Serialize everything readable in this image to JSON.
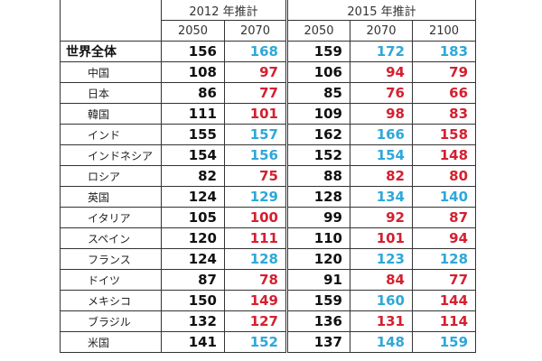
{
  "table": {
    "group_headers": [
      "2012 年推計",
      "2015 年推計"
    ],
    "sub_headers": [
      "2050",
      "2070",
      "2050",
      "2070",
      "2100"
    ],
    "colors": {
      "increase": "#2ea8d8",
      "decrease": "#d42030",
      "base": "#111111"
    },
    "rows": [
      {
        "label": "世界全体",
        "v": [
          "156",
          "168",
          "159",
          "172",
          "183"
        ],
        "t": [
          "base",
          "up",
          "base",
          "up",
          "up"
        ]
      },
      {
        "label": "中国",
        "v": [
          "108",
          "97",
          "106",
          "94",
          "79"
        ],
        "t": [
          "base",
          "down",
          "base",
          "down",
          "down"
        ]
      },
      {
        "label": "日本",
        "v": [
          "86",
          "77",
          "85",
          "76",
          "66"
        ],
        "t": [
          "base",
          "down",
          "base",
          "down",
          "down"
        ]
      },
      {
        "label": "韓国",
        "v": [
          "111",
          "101",
          "109",
          "98",
          "83"
        ],
        "t": [
          "base",
          "down",
          "base",
          "down",
          "down"
        ]
      },
      {
        "label": "インド",
        "v": [
          "155",
          "157",
          "162",
          "166",
          "158"
        ],
        "t": [
          "base",
          "up",
          "base",
          "up",
          "down"
        ]
      },
      {
        "label": "インドネシア",
        "v": [
          "154",
          "156",
          "152",
          "154",
          "148"
        ],
        "t": [
          "base",
          "up",
          "base",
          "up",
          "down"
        ]
      },
      {
        "label": "ロシア",
        "v": [
          "82",
          "75",
          "88",
          "82",
          "80"
        ],
        "t": [
          "base",
          "down",
          "base",
          "down",
          "down"
        ]
      },
      {
        "label": "英国",
        "v": [
          "124",
          "129",
          "128",
          "134",
          "140"
        ],
        "t": [
          "base",
          "up",
          "base",
          "up",
          "up"
        ]
      },
      {
        "label": "イタリア",
        "v": [
          "105",
          "100",
          "99",
          "92",
          "87"
        ],
        "t": [
          "base",
          "down",
          "base",
          "down",
          "down"
        ]
      },
      {
        "label": "スペイン",
        "v": [
          "120",
          "111",
          "110",
          "101",
          "94"
        ],
        "t": [
          "base",
          "down",
          "base",
          "down",
          "down"
        ]
      },
      {
        "label": "フランス",
        "v": [
          "124",
          "128",
          "120",
          "123",
          "128"
        ],
        "t": [
          "base",
          "up",
          "base",
          "up",
          "up"
        ]
      },
      {
        "label": "ドイツ",
        "v": [
          "87",
          "78",
          "91",
          "84",
          "77"
        ],
        "t": [
          "base",
          "down",
          "base",
          "down",
          "down"
        ]
      },
      {
        "label": "メキシコ",
        "v": [
          "150",
          "149",
          "159",
          "160",
          "144"
        ],
        "t": [
          "base",
          "down",
          "base",
          "up",
          "down"
        ]
      },
      {
        "label": "ブラジル",
        "v": [
          "132",
          "127",
          "136",
          "131",
          "114"
        ],
        "t": [
          "base",
          "down",
          "base",
          "down",
          "down"
        ]
      },
      {
        "label": "米国",
        "v": [
          "141",
          "152",
          "137",
          "148",
          "159"
        ],
        "t": [
          "base",
          "up",
          "base",
          "up",
          "up"
        ]
      }
    ]
  }
}
